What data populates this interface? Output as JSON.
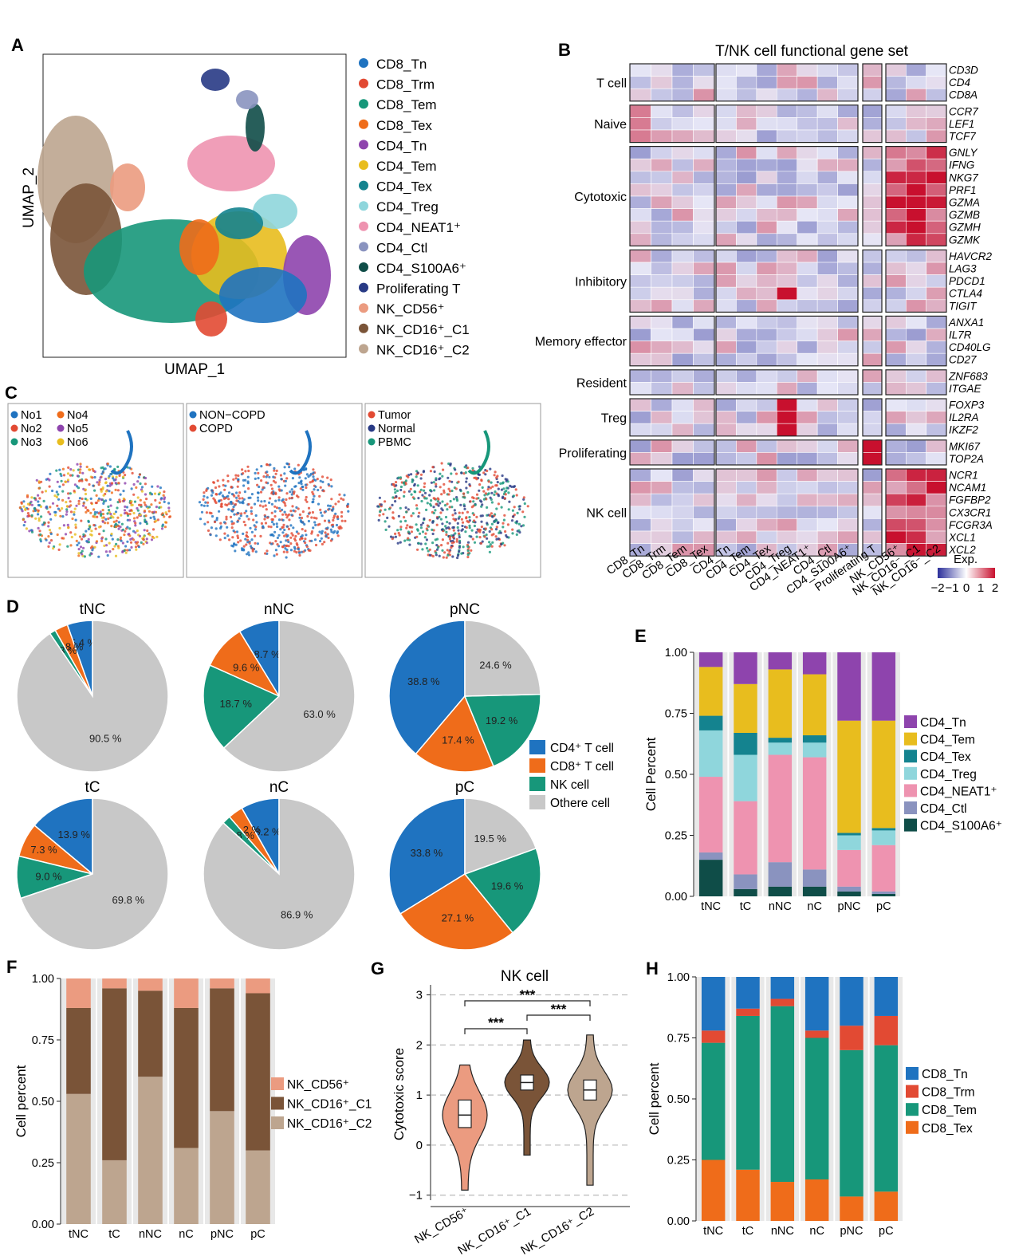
{
  "colors": {
    "CD8_Tn": "#1f73c0",
    "CD8_Trm": "#e24a33",
    "CD8_Tem": "#17977a",
    "CD8_Tex": "#ef6c1a",
    "CD4_Tn": "#8e44ad",
    "CD4_Tem": "#e8bd1e",
    "CD4_Tex": "#14838f",
    "CD4_Treg": "#8fd6dc",
    "CD4_NEAT1": "#ee93b0",
    "CD4_Ctl": "#8a93bf",
    "CD4_S100A6": "#0f4d48",
    "Proliferating": "#283a85",
    "NK_CD56": "#eb9b80",
    "NK_CD16_C1": "#7a5438",
    "NK_CD16_C2": "#bda58f",
    "other": "#c8c8c8",
    "heat_low": "#2b2f9a",
    "heat_mid": "#ffffff",
    "heat_high": "#c8102e",
    "bar_bg": "#e8e8e8"
  },
  "panels": {
    "A": {
      "letter": "A",
      "xlabel": "UMAP_1",
      "ylabel": "UMAP_2",
      "legend": [
        "CD8_Tn",
        "CD8_Trm",
        "CD8_Tem",
        "CD8_Tex",
        "CD4_Tn",
        "CD4_Tem",
        "CD4_Tex",
        "CD4_Treg",
        "CD4_NEAT1⁺",
        "CD4_Ctl",
        "CD4_S100A6⁺",
        "Proliferating T",
        "NK_CD56⁺",
        "NK_CD16⁺_C1",
        "NK_CD16⁺_C2"
      ],
      "legend_colors": [
        "CD8_Tn",
        "CD8_Trm",
        "CD8_Tem",
        "CD8_Tex",
        "CD4_Tn",
        "CD4_Tem",
        "CD4_Tex",
        "CD4_Treg",
        "CD4_NEAT1",
        "CD4_Ctl",
        "CD4_S100A6",
        "Proliferating",
        "NK_CD56",
        "NK_CD16_C1",
        "NK_CD16_C2"
      ]
    },
    "B": {
      "letter": "B",
      "title": "T/NK cell functional gene set",
      "column_labels": [
        "CD8_Tn",
        "CD8_Trm",
        "CD8_Tem",
        "CD8_Tex",
        "CD4_Tn",
        "CD4_Tem",
        "CD4_Tex",
        "CD4_Treg",
        "CD4_NEAT1⁺",
        "CD4_Ctl",
        "CD4_S100A6⁺",
        "Proliferating T",
        "NK_CD56⁺",
        "NK_CD16⁻_C1",
        "NK_CD16⁻_C2"
      ],
      "groups": [
        {
          "name": "T cell",
          "genes": [
            "CD3D",
            "CD4",
            "CD8A"
          ]
        },
        {
          "name": "Naive",
          "genes": [
            "CCR7",
            "LEF1",
            "TCF7"
          ]
        },
        {
          "name": "Cytotoxic",
          "genes": [
            "GNLY",
            "IFNG",
            "NKG7",
            "PRF1",
            "GZMA",
            "GZMB",
            "GZMH",
            "GZMK"
          ]
        },
        {
          "name": "Inhibitory",
          "genes": [
            "HAVCR2",
            "LAG3",
            "PDCD1",
            "CTLA4",
            "TIGIT"
          ]
        },
        {
          "name": "Memory effector",
          "genes": [
            "ANXA1",
            "IL7R",
            "CD40LG",
            "CD27"
          ]
        },
        {
          "name": "Resident",
          "genes": [
            "ZNF683",
            "ITGAE"
          ]
        },
        {
          "name": "Treg",
          "genes": [
            "FOXP3",
            "IL2RA",
            "IKZF2"
          ]
        },
        {
          "name": "Proliferating",
          "genes": [
            "MKI67",
            "TOP2A"
          ]
        },
        {
          "name": "NK cell",
          "genes": [
            "NCR1",
            "NCAM1",
            "FGFBP2",
            "CX3CR1",
            "FCGR3A",
            "XCL1",
            "XCL2"
          ]
        }
      ],
      "legend_title": "Exp.",
      "legend_ticks": [
        "−2",
        "−1",
        "0",
        "1",
        "2"
      ]
    },
    "C": {
      "letter": "C",
      "legend1": [
        "No1",
        "No4",
        "No2",
        "No5",
        "No3",
        "No6"
      ],
      "legend1_colors": [
        "#1f73c0",
        "#ef6c1a",
        "#e24a33",
        "#8e44ad",
        "#17977a",
        "#e8bd1e"
      ],
      "legend2": [
        "NON−COPD",
        "COPD"
      ],
      "legend2_colors": [
        "#1f73c0",
        "#e24a33"
      ],
      "legend3": [
        "Tumor",
        "Normal",
        "PBMC"
      ],
      "legend3_colors": [
        "#e24a33",
        "#283a85",
        "#17977a"
      ]
    },
    "D": {
      "letter": "D",
      "legend": [
        "CD4⁺ T cell",
        "CD8⁺ T cell",
        "NK cell",
        "Othere cell"
      ]
    },
    "E": {
      "letter": "E",
      "ylabel": "Cell Percent"
    },
    "F": {
      "letter": "F",
      "ylabel": "Cell percent"
    },
    "G": {
      "letter": "G",
      "title": "NK cell",
      "ylabel": "Cytotoxic score"
    },
    "H": {
      "letter": "H",
      "ylabel": "Cell percent"
    }
  },
  "chart_data": [
    {
      "panel": "D",
      "type": "pie",
      "charts": [
        {
          "title": "tNC",
          "labels": [
            "CD4⁺ T cell",
            "CD8⁺ T cell",
            "NK cell",
            "Othere cell"
          ],
          "values": [
            5.4,
            2.8,
            1.3,
            90.5
          ],
          "value_labels": [
            "5.4 %",
            "2.8 %",
            "1.3 %",
            "90.5 %"
          ]
        },
        {
          "title": "nNC",
          "labels": [
            "CD4⁺ T cell",
            "CD8⁺ T cell",
            "NK cell",
            "Othere cell"
          ],
          "values": [
            8.7,
            9.6,
            18.7,
            63.0
          ],
          "value_labels": [
            "8.7 %",
            "9.6 %",
            "18.7 %",
            "63.0 %"
          ]
        },
        {
          "title": "pNC",
          "labels": [
            "CD4⁺ T cell",
            "CD8⁺ T cell",
            "NK cell",
            "Othere cell"
          ],
          "values": [
            38.8,
            17.4,
            19.2,
            24.6
          ],
          "value_labels": [
            "38.8 %",
            "17.4 %",
            "19.2 %",
            "24.6 %"
          ]
        },
        {
          "title": "tC",
          "labels": [
            "CD4⁺ T cell",
            "CD8⁺ T cell",
            "NK cell",
            "Othere cell"
          ],
          "values": [
            13.9,
            7.3,
            9.0,
            69.8
          ],
          "value_labels": [
            "13.9 %",
            "7.3 %",
            "9.0 %",
            "69.8 %"
          ]
        },
        {
          "title": "nC",
          "labels": [
            "CD4⁺ T cell",
            "CD8⁺ T cell",
            "NK cell",
            "Othere cell"
          ],
          "values": [
            8.2,
            3.2,
            1.8,
            86.9
          ],
          "value_labels": [
            "8.2 %",
            "3.2 %",
            "1.8 %",
            "86.9 %"
          ]
        },
        {
          "title": "pC",
          "labels": [
            "CD4⁺ T cell",
            "CD8⁺ T cell",
            "NK cell",
            "Othere cell"
          ],
          "values": [
            33.8,
            27.1,
            19.6,
            19.5
          ],
          "value_labels": [
            "33.8 %",
            "27.1 %",
            "19.6 %",
            "19.5 %"
          ]
        }
      ]
    },
    {
      "panel": "E",
      "type": "bar",
      "stacked": true,
      "categories": [
        "tNC",
        "tC",
        "nNC",
        "nC",
        "pNC",
        "pC"
      ],
      "ylabel": "Cell Percent",
      "ylim": [
        0,
        1
      ],
      "yticks": [
        "0.00",
        "0.25",
        "0.50",
        "0.75",
        "1.00"
      ],
      "series": [
        {
          "name": "CD4_S100A6⁺",
          "color": "CD4_S100A6",
          "values": [
            0.15,
            0.03,
            0.04,
            0.04,
            0.02,
            0.01
          ]
        },
        {
          "name": "CD4_Ctl",
          "color": "CD4_Ctl",
          "values": [
            0.03,
            0.06,
            0.1,
            0.07,
            0.02,
            0.01
          ]
        },
        {
          "name": "CD4_NEAT1⁺",
          "color": "CD4_NEAT1",
          "values": [
            0.31,
            0.3,
            0.44,
            0.46,
            0.15,
            0.19
          ]
        },
        {
          "name": "CD4_Treg",
          "color": "CD4_Treg",
          "values": [
            0.19,
            0.19,
            0.05,
            0.06,
            0.06,
            0.06
          ]
        },
        {
          "name": "CD4_Tex",
          "color": "CD4_Tex",
          "values": [
            0.06,
            0.09,
            0.02,
            0.03,
            0.01,
            0.01
          ]
        },
        {
          "name": "CD4_Tem",
          "color": "CD4_Tem",
          "values": [
            0.2,
            0.2,
            0.28,
            0.25,
            0.46,
            0.44
          ]
        },
        {
          "name": "CD4_Tn",
          "color": "CD4_Tn",
          "values": [
            0.06,
            0.13,
            0.07,
            0.09,
            0.28,
            0.28
          ]
        }
      ],
      "legend_order": [
        "CD4_Tn",
        "CD4_Tem",
        "CD4_Tex",
        "CD4_Treg",
        "CD4_NEAT1⁺",
        "CD4_Ctl",
        "CD4_S100A6⁺"
      ],
      "legend_colors": [
        "CD4_Tn",
        "CD4_Tem",
        "CD4_Tex",
        "CD4_Treg",
        "CD4_NEAT1",
        "CD4_Ctl",
        "CD4_S100A6"
      ]
    },
    {
      "panel": "F",
      "type": "bar",
      "stacked": true,
      "categories": [
        "tNC",
        "tC",
        "nNC",
        "nC",
        "pNC",
        "pC"
      ],
      "ylabel": "Cell percent",
      "ylim": [
        0,
        1
      ],
      "yticks": [
        "0.00",
        "0.25",
        "0.50",
        "0.75",
        "1.00"
      ],
      "series": [
        {
          "name": "NK_CD16⁺_C2",
          "color": "NK_CD16_C2",
          "values": [
            0.53,
            0.26,
            0.6,
            0.31,
            0.46,
            0.3
          ]
        },
        {
          "name": "NK_CD16⁺_C1",
          "color": "NK_CD16_C1",
          "values": [
            0.35,
            0.7,
            0.35,
            0.57,
            0.5,
            0.64
          ]
        },
        {
          "name": "NK_CD56⁺",
          "color": "NK_CD56",
          "values": [
            0.12,
            0.04,
            0.05,
            0.12,
            0.04,
            0.06
          ]
        }
      ],
      "legend_order": [
        "NK_CD56⁺",
        "NK_CD16⁺_C1",
        "NK_CD16⁺_C2"
      ],
      "legend_colors": [
        "NK_CD56",
        "NK_CD16_C1",
        "NK_CD16_C2"
      ]
    },
    {
      "panel": "G",
      "type": "violin",
      "title": "NK cell",
      "ylabel": "Cytotoxic score",
      "ylim": [
        -1.1,
        3.2
      ],
      "yticks": [
        "−1",
        "0",
        "1",
        "2",
        "3"
      ],
      "categories": [
        "NK_CD56⁺",
        "NK_CD16⁺_C1",
        "NK_CD16⁺_C2"
      ],
      "stats": [
        {
          "min": -0.9,
          "q1": 0.35,
          "median": 0.6,
          "q3": 0.9,
          "max": 1.6,
          "color": "NK_CD56"
        },
        {
          "min": -0.2,
          "q1": 1.1,
          "median": 1.25,
          "q3": 1.4,
          "max": 2.1,
          "color": "NK_CD16_C1"
        },
        {
          "min": -0.8,
          "q1": 0.9,
          "median": 1.1,
          "q3": 1.3,
          "max": 2.2,
          "color": "NK_CD16_C2"
        }
      ],
      "significance": [
        "***",
        "***",
        "***"
      ]
    },
    {
      "panel": "H",
      "type": "bar",
      "stacked": true,
      "categories": [
        "tNC",
        "tC",
        "nNC",
        "nC",
        "pNC",
        "pC"
      ],
      "ylabel": "Cell percent",
      "ylim": [
        0,
        1
      ],
      "yticks": [
        "0.00",
        "0.25",
        "0.50",
        "0.75",
        "1.00"
      ],
      "series": [
        {
          "name": "CD8_Tex",
          "color": "CD8_Tex",
          "values": [
            0.25,
            0.21,
            0.16,
            0.17,
            0.1,
            0.12
          ]
        },
        {
          "name": "CD8_Tem",
          "color": "CD8_Tem",
          "values": [
            0.48,
            0.63,
            0.72,
            0.58,
            0.6,
            0.6
          ]
        },
        {
          "name": "CD8_Trm",
          "color": "CD8_Trm",
          "values": [
            0.05,
            0.03,
            0.03,
            0.03,
            0.1,
            0.12
          ]
        },
        {
          "name": "CD8_Tn",
          "color": "CD8_Tn",
          "values": [
            0.22,
            0.13,
            0.09,
            0.22,
            0.2,
            0.16
          ]
        }
      ],
      "legend_order": [
        "CD8_Tn",
        "CD8_Trm",
        "CD8_Tem",
        "CD8_Tex"
      ],
      "legend_colors": [
        "CD8_Tn",
        "CD8_Trm",
        "CD8_Tem",
        "CD8_Tex"
      ]
    }
  ]
}
